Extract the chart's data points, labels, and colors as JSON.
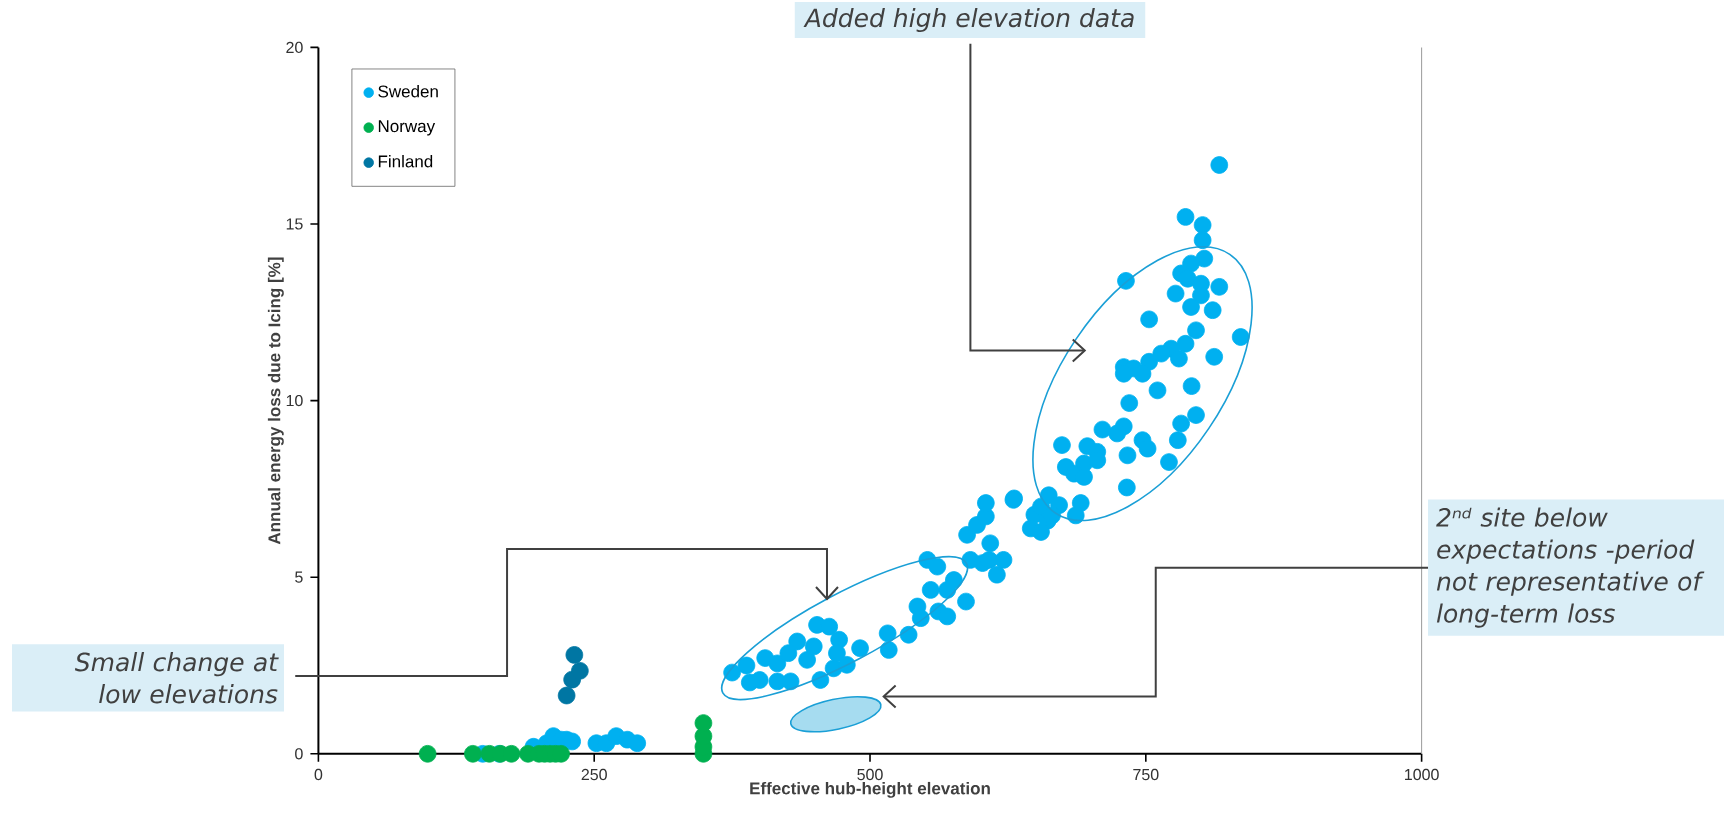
{
  "chart_data": {
    "type": "scatter",
    "xlabel": "Effective hub-height elevation",
    "ylabel": "Annual energy loss due to Icing [%]",
    "xlim": [
      0,
      1000
    ],
    "ylim": [
      0,
      20
    ],
    "xticks": [
      0,
      250,
      500,
      750,
      1000
    ],
    "yticks": [
      0,
      5,
      10,
      15,
      20
    ],
    "grid": false,
    "legend": "top left",
    "series": [
      {
        "name": "Sweden",
        "color": "#00b0f0",
        "x": [
          149,
          164,
          195,
          207,
          213,
          220,
          225,
          230,
          252,
          261,
          270,
          280,
          289,
          375,
          388,
          391,
          400,
          405,
          416,
          416,
          428,
          426,
          434,
          443,
          449,
          452,
          463,
          455,
          467,
          472,
          470,
          479,
          491,
          516,
          517,
          535,
          543,
          546,
          555,
          562,
          570,
          570,
          576,
          587,
          552,
          561,
          588,
          597,
          605,
          605,
          609,
          591,
          602,
          608,
          621,
          615,
          630,
          649,
          655,
          661,
          816.6,
          786,
          801.5,
          801.5,
          803,
          791,
          782,
          788,
          732,
          800,
          816.6,
          800,
          777,
          791,
          810.6,
          753,
          795.5,
          836,
          786,
          773,
          764,
          780,
          753,
          730,
          739,
          747,
          730,
          812,
          760.6,
          791.5,
          735,
          795.5,
          782,
          779,
          730,
          724,
          710.7,
          674,
          697,
          706,
          747,
          751.6,
          733.4,
          694,
          706,
          677.5,
          685,
          694,
          771,
          732.8,
          662,
          671.4,
          691,
          686.5,
          665,
          645.7,
          655,
          630.6
        ],
        "values": [
          0,
          0,
          0.2,
          0.3,
          0.5,
          0.4,
          0.4,
          0.35,
          0.3,
          0.3,
          0.5,
          0.4,
          0.3,
          2.3,
          2.5,
          2.02,
          2.09,
          2.71,
          2.56,
          2.05,
          2.05,
          2.85,
          3.18,
          2.66,
          3.04,
          3.65,
          3.6,
          2.09,
          2.42,
          3.23,
          2.85,
          2.52,
          2.99,
          3.41,
          2.94,
          3.37,
          4.17,
          3.84,
          4.64,
          4.03,
          3.89,
          4.64,
          4.92,
          4.31,
          5.49,
          5.3,
          6.2,
          6.48,
          6.72,
          7.1,
          5.96,
          5.49,
          5.4,
          5.49,
          5.49,
          5.07,
          7.19,
          6.77,
          7.0,
          6.6,
          16.67,
          15.2,
          14.97,
          14.54,
          14.02,
          13.88,
          13.6,
          13.45,
          13.39,
          13.31,
          13.22,
          12.98,
          13.03,
          12.65,
          12.56,
          12.3,
          11.99,
          11.8,
          11.61,
          11.47,
          11.33,
          11.19,
          11.1,
          10.95,
          10.91,
          10.76,
          10.76,
          11.24,
          10.29,
          10.41,
          9.93,
          9.59,
          9.35,
          8.88,
          9.27,
          9.07,
          9.18,
          8.74,
          8.71,
          8.55,
          8.88,
          8.64,
          8.45,
          8.22,
          8.31,
          8.12,
          7.93,
          7.84,
          8.26,
          7.54,
          7.32,
          7.04,
          7.1,
          6.75,
          6.75,
          6.38,
          6.28,
          7.23
        ]
      },
      {
        "name": "Norway",
        "color": "#00b050",
        "x": [
          99,
          140,
          155,
          165,
          175,
          190,
          200,
          205,
          210,
          215,
          220,
          349,
          349,
          349,
          349
        ],
        "values": [
          0,
          0,
          0,
          0,
          0,
          0,
          0,
          0,
          0,
          0,
          0,
          0,
          0.2,
          0.5,
          0.87
        ]
      },
      {
        "name": "Finland",
        "color": "#0076a3",
        "x": [
          225,
          230,
          237,
          232
        ],
        "values": [
          1.65,
          2.1,
          2.35,
          2.8
        ]
      }
    ],
    "annotations": [
      "Added high elevation data",
      "2ⁿᵈ site below expectations -period not representative of long-term loss",
      "Small change at low elevations"
    ]
  }
}
